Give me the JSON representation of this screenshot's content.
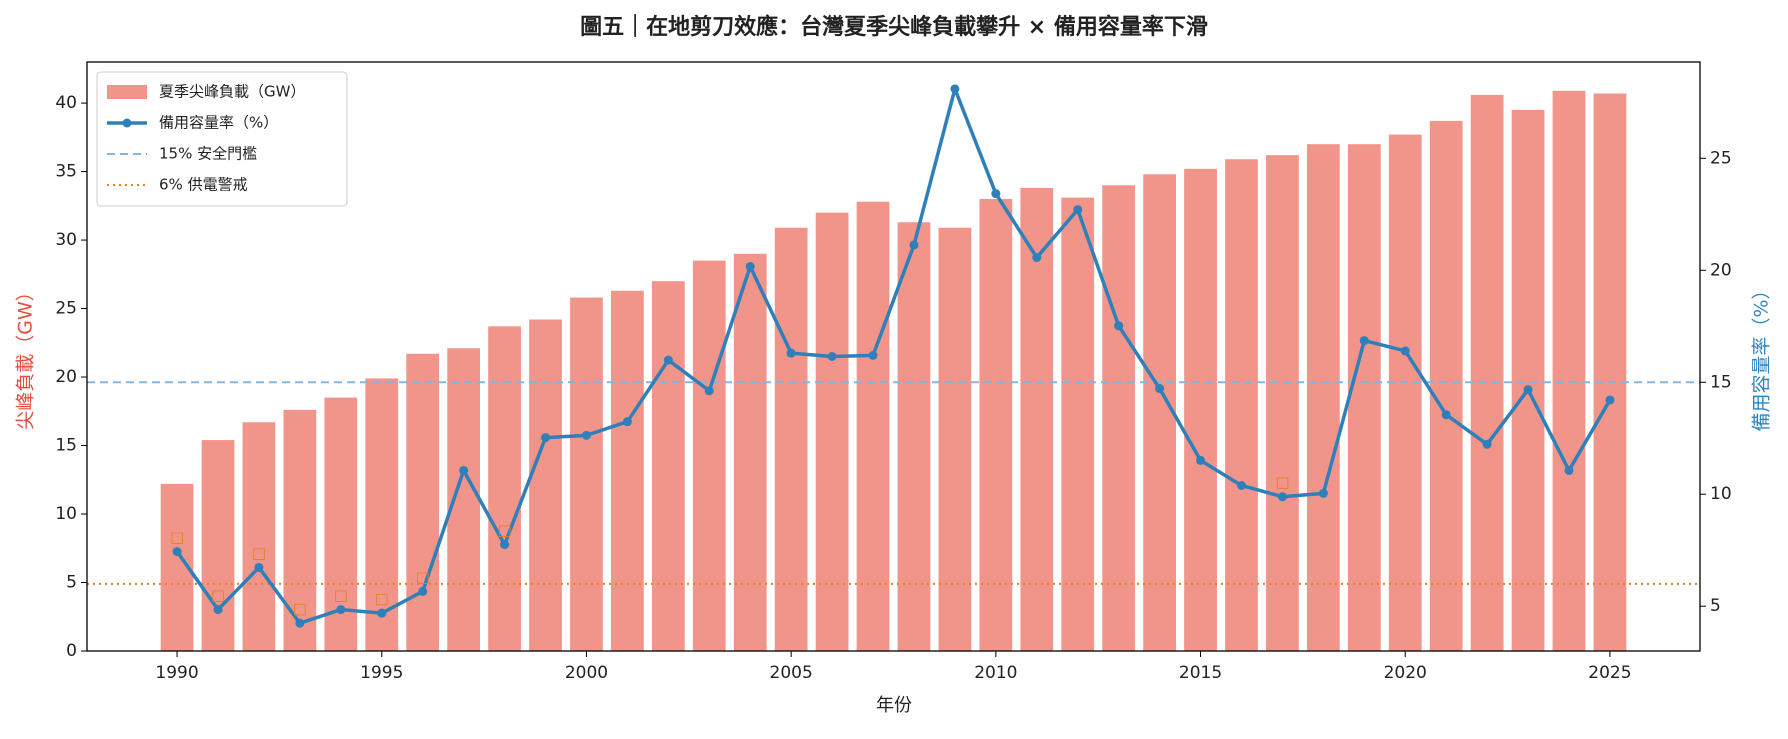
{
  "chart_data": {
    "type": "bar_line",
    "title": "圖五｜在地剪刀效應：台灣夏季尖峰負載攀升 × 備用容量率下滑",
    "xlabel": "年份",
    "ylabel": "尖峰負載（GW）",
    "y2label": "備用容量率（%）",
    "x": [
      1990,
      1991,
      1992,
      1993,
      1994,
      1995,
      1996,
      1997,
      1998,
      1999,
      2000,
      2001,
      2002,
      2003,
      2004,
      2005,
      2006,
      2007,
      2008,
      2009,
      2010,
      2011,
      2012,
      2013,
      2014,
      2015,
      2016,
      2017,
      2018,
      2019,
      2020,
      2021,
      2022,
      2023,
      2024,
      2025
    ],
    "series": [
      {
        "name": "夏季尖峰負載（GW）",
        "kind": "bar",
        "color": "#f1948a",
        "values": [
          12.2,
          15.4,
          16.7,
          17.6,
          18.5,
          19.9,
          21.7,
          22.1,
          23.7,
          24.2,
          25.8,
          26.3,
          27.0,
          28.5,
          29.0,
          30.9,
          32.0,
          32.8,
          31.3,
          30.9,
          33.0,
          33.8,
          33.1,
          34.0,
          34.8,
          35.2,
          35.9,
          36.2,
          37.0,
          37.0,
          37.7,
          38.7,
          40.6,
          39.5,
          40.9,
          40.7
        ]
      },
      {
        "name": "備用容量率（%）",
        "kind": "line",
        "axis": "y2",
        "color": "#2e80ba",
        "values": [
          7.44,
          4.85,
          6.73,
          4.24,
          4.85,
          4.69,
          5.66,
          11.06,
          7.75,
          12.53,
          12.63,
          13.24,
          15.99,
          14.62,
          20.17,
          16.3,
          16.15,
          16.2,
          21.13,
          28.1,
          23.42,
          20.57,
          22.71,
          17.52,
          14.72,
          11.51,
          10.39,
          9.89,
          10.04,
          16.86,
          16.4,
          13.55,
          12.23,
          14.67,
          11.06,
          14.21
        ]
      }
    ],
    "hlines": [
      {
        "name": "15% 安全門檻",
        "value": 15,
        "axis": "y2",
        "color": "#85b5dd",
        "dash": "dashed"
      },
      {
        "name": "6% 供電警戒",
        "value": 6,
        "axis": "y2",
        "color": "#e67e22",
        "dash": "dotted"
      }
    ],
    "alert_label": "□",
    "alert_years": [
      1990,
      1991,
      1992,
      1993,
      1994,
      1995,
      1996,
      1998,
      2017
    ],
    "xlim": [
      1987.8,
      2027.2
    ],
    "xticks": [
      1990,
      1995,
      2000,
      2005,
      2010,
      2015,
      2020,
      2025
    ],
    "ylim": [
      0,
      43
    ],
    "yticks": [
      0,
      5,
      10,
      15,
      20,
      25,
      30,
      35,
      40
    ],
    "y2lim": [
      3.0,
      29.3
    ],
    "y2ticks": [
      5,
      10,
      15,
      20,
      25
    ],
    "grid": false,
    "legend": "upper left"
  }
}
